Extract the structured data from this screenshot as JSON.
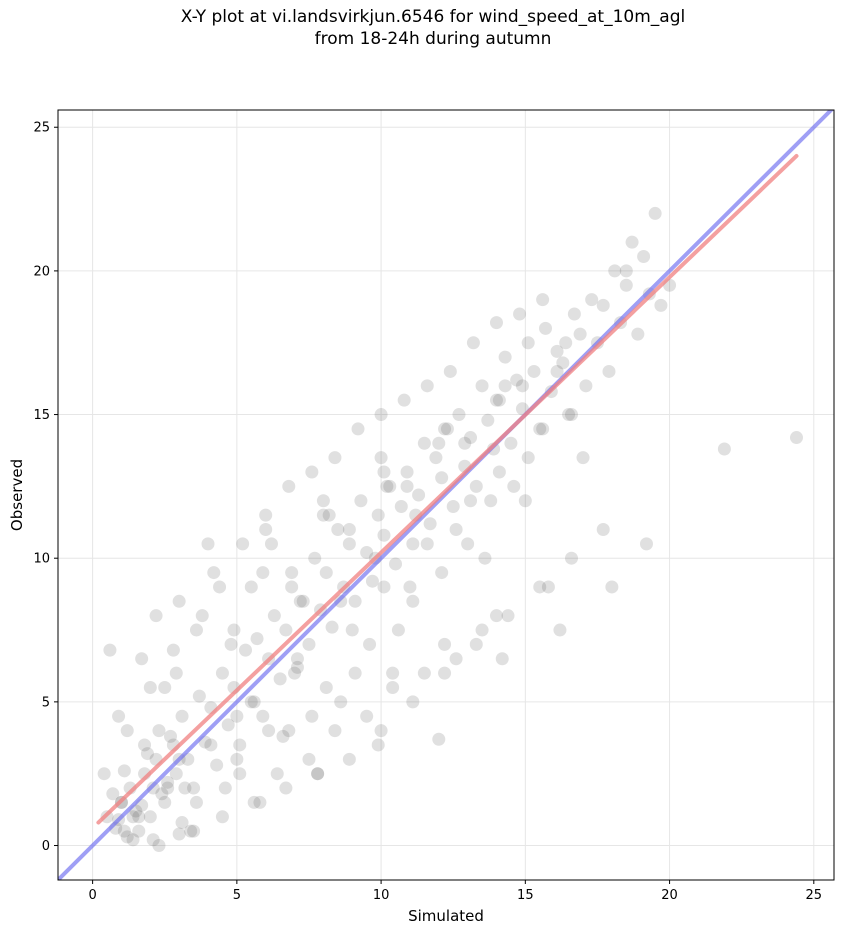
{
  "chart_data": {
    "type": "scatter",
    "title_line1": "X-Y plot at vi.landsvirkjun.6546 for wind_speed_at_10m_agl",
    "title_line2": "from 18-24h during autumn",
    "xlabel": "Simulated",
    "ylabel": "Observed",
    "xlim": [
      -1.2,
      25.7
    ],
    "ylim": [
      -1.2,
      25.6
    ],
    "xticks": [
      0,
      5,
      10,
      15,
      20,
      25
    ],
    "yticks": [
      0,
      5,
      10,
      15,
      20,
      25
    ],
    "grid": true,
    "point_color": "#555555",
    "point_opacity": 0.18,
    "fit_line": {
      "color": "#f08080",
      "x": [
        0.2,
        24.4
      ],
      "y": [
        0.8,
        24.0
      ]
    },
    "identity_line": {
      "color": "#6b6bf0",
      "x": [
        -1.2,
        25.7
      ],
      "y": [
        -1.2,
        25.7
      ]
    },
    "series": [
      {
        "x": [
          0.5,
          0.8,
          1.0,
          1.2,
          1.3,
          1.5,
          1.6,
          1.8,
          2.0,
          2.2,
          2.4,
          2.6,
          2.8,
          3.0,
          0.7,
          0.9,
          1.1,
          1.4,
          1.7,
          1.9,
          2.1,
          2.3,
          2.5,
          2.7,
          2.9,
          3.1,
          3.3,
          3.5,
          3.7,
          3.9,
          4.1,
          4.3,
          4.5,
          4.7,
          4.9,
          5.1,
          5.3,
          5.5,
          5.7,
          5.9,
          6.1,
          6.3,
          6.5,
          6.7,
          6.9,
          7.1,
          7.3,
          7.5,
          7.7,
          7.9,
          8.1,
          8.3,
          8.5,
          8.7,
          8.9,
          9.1,
          9.3,
          9.5,
          9.7,
          9.9,
          10.1,
          10.3,
          10.5,
          10.7,
          10.9,
          11.1,
          11.3,
          11.5,
          11.7,
          11.9,
          12.1,
          12.3,
          12.5,
          12.7,
          12.9,
          13.1,
          13.3,
          13.5,
          13.7,
          13.9,
          14.1,
          14.3,
          14.5,
          14.7,
          14.9,
          15.1,
          15.3,
          15.5,
          15.7,
          15.9,
          16.1,
          16.3,
          16.5,
          16.7,
          16.9,
          17.1,
          17.3,
          17.5,
          17.7,
          17.9,
          18.1,
          18.3,
          18.5,
          18.7,
          18.9,
          19.1,
          19.3,
          19.5,
          19.7,
          20.0,
          21.9,
          24.4,
          1.1,
          1.6,
          2.1,
          2.6,
          3.1,
          3.6,
          4.1,
          4.6,
          5.1,
          5.6,
          6.1,
          6.6,
          7.1,
          7.6,
          8.1,
          8.6,
          9.1,
          9.6,
          10.1,
          10.6,
          11.1,
          11.6,
          12.1,
          12.6,
          13.1,
          13.6,
          14.1,
          14.6,
          15.1,
          15.6,
          16.1,
          16.6,
          0.4,
          1.2,
          2.0,
          2.8,
          3.6,
          4.4,
          5.2,
          6.0,
          6.8,
          7.6,
          8.4,
          9.2,
          10.0,
          10.8,
          11.6,
          12.4,
          13.2,
          14.0,
          14.8,
          15.6,
          2.3,
          3.4,
          4.5,
          5.6,
          6.7,
          7.8,
          8.9,
          10.0,
          11.1,
          12.2,
          13.3,
          14.4,
          15.5,
          16.6,
          17.7,
          1.7,
          3.8,
          5.9,
          8.0,
          10.1,
          12.2,
          14.3,
          16.4,
          18.5,
          0.9,
          2.9,
          4.9,
          6.9,
          8.9,
          10.9,
          12.9,
          14.9,
          1.4,
          3.2,
          5.0,
          6.8,
          8.6,
          10.4,
          12.2,
          14.0,
          15.8,
          4.0,
          6.0,
          8.0,
          10.0,
          12.0,
          14.0,
          3.0,
          5.5,
          7.5,
          9.5,
          11.5,
          13.5,
          2.5,
          4.8,
          7.2,
          9.8,
          11.2,
          13.8,
          1.8,
          6.4,
          8.4,
          10.4,
          12.6,
          3.5,
          5.8,
          7.8,
          9.9,
          0.6,
          2.2,
          4.2,
          6.2,
          8.2,
          10.2,
          12.0,
          14.2,
          16.2,
          18.0,
          19.2,
          1.0,
          3.0,
          5.0,
          7.0,
          9.0,
          11.0,
          13.0,
          15.0,
          17.0
        ],
        "y": [
          1.0,
          0.6,
          1.5,
          0.3,
          2.0,
          1.2,
          0.5,
          2.5,
          1.0,
          3.0,
          1.8,
          2.2,
          3.5,
          0.4,
          1.8,
          0.9,
          2.6,
          0.2,
          1.4,
          3.2,
          2.0,
          4.0,
          1.5,
          3.8,
          2.5,
          4.5,
          3.0,
          2.0,
          5.2,
          3.6,
          4.8,
          2.8,
          6.0,
          4.2,
          5.5,
          3.5,
          6.8,
          5.0,
          7.2,
          4.5,
          6.5,
          8.0,
          5.8,
          7.5,
          9.0,
          6.2,
          8.5,
          7.0,
          10.0,
          8.2,
          9.5,
          7.6,
          11.0,
          9.0,
          10.5,
          8.5,
          12.0,
          10.2,
          9.2,
          11.5,
          10.8,
          12.5,
          9.8,
          11.8,
          13.0,
          10.5,
          12.2,
          14.0,
          11.2,
          13.5,
          12.8,
          14.5,
          11.8,
          15.0,
          13.2,
          14.2,
          12.5,
          16.0,
          14.8,
          13.8,
          15.5,
          17.0,
          14.0,
          16.2,
          15.2,
          17.5,
          16.5,
          14.5,
          18.0,
          15.8,
          17.2,
          16.8,
          15.0,
          18.5,
          17.8,
          16.0,
          19.0,
          17.5,
          18.8,
          16.5,
          20.0,
          18.2,
          19.5,
          21.0,
          17.8,
          20.5,
          19.2,
          22.0,
          18.8,
          19.5,
          13.8,
          14.2,
          0.5,
          1.0,
          0.2,
          2.0,
          0.8,
          1.5,
          3.5,
          2.0,
          2.5,
          5.0,
          4.0,
          3.8,
          6.5,
          4.5,
          5.5,
          8.5,
          6.0,
          7.0,
          9.0,
          7.5,
          8.5,
          10.5,
          9.5,
          11.0,
          12.0,
          10.0,
          13.0,
          12.5,
          13.5,
          14.5,
          16.5,
          15.0,
          2.5,
          4.0,
          5.5,
          6.8,
          7.5,
          9.0,
          10.5,
          11.5,
          12.5,
          13.0,
          13.5,
          14.5,
          15.0,
          15.5,
          16.0,
          16.5,
          17.5,
          18.2,
          18.5,
          19.0,
          0.0,
          0.5,
          1.0,
          1.5,
          2.0,
          2.5,
          3.0,
          4.0,
          5.0,
          6.0,
          7.0,
          8.0,
          9.0,
          10.0,
          11.0,
          6.5,
          8.0,
          9.5,
          11.5,
          13.0,
          14.5,
          16.0,
          17.5,
          20.0,
          4.5,
          6.0,
          7.5,
          9.5,
          11.0,
          12.5,
          14.0,
          16.0,
          1.0,
          2.0,
          3.0,
          4.0,
          5.0,
          6.0,
          7.0,
          8.0,
          9.0,
          10.5,
          11.0,
          12.0,
          13.5,
          14.0,
          15.5,
          8.5,
          9.0,
          3.0,
          4.5,
          6.0,
          7.5,
          5.5,
          7.0,
          8.5,
          10.0,
          11.5,
          12.0,
          3.5,
          2.5,
          4.0,
          5.5,
          6.5,
          0.5,
          1.5,
          2.5,
          3.5,
          6.8,
          8.0,
          9.5,
          10.5,
          11.5,
          12.5,
          3.7,
          6.5,
          7.5,
          9.0,
          10.5,
          1.5,
          3.0,
          4.5,
          6.0,
          7.5,
          9.0,
          10.5,
          12.0,
          13.5
        ]
      }
    ]
  }
}
